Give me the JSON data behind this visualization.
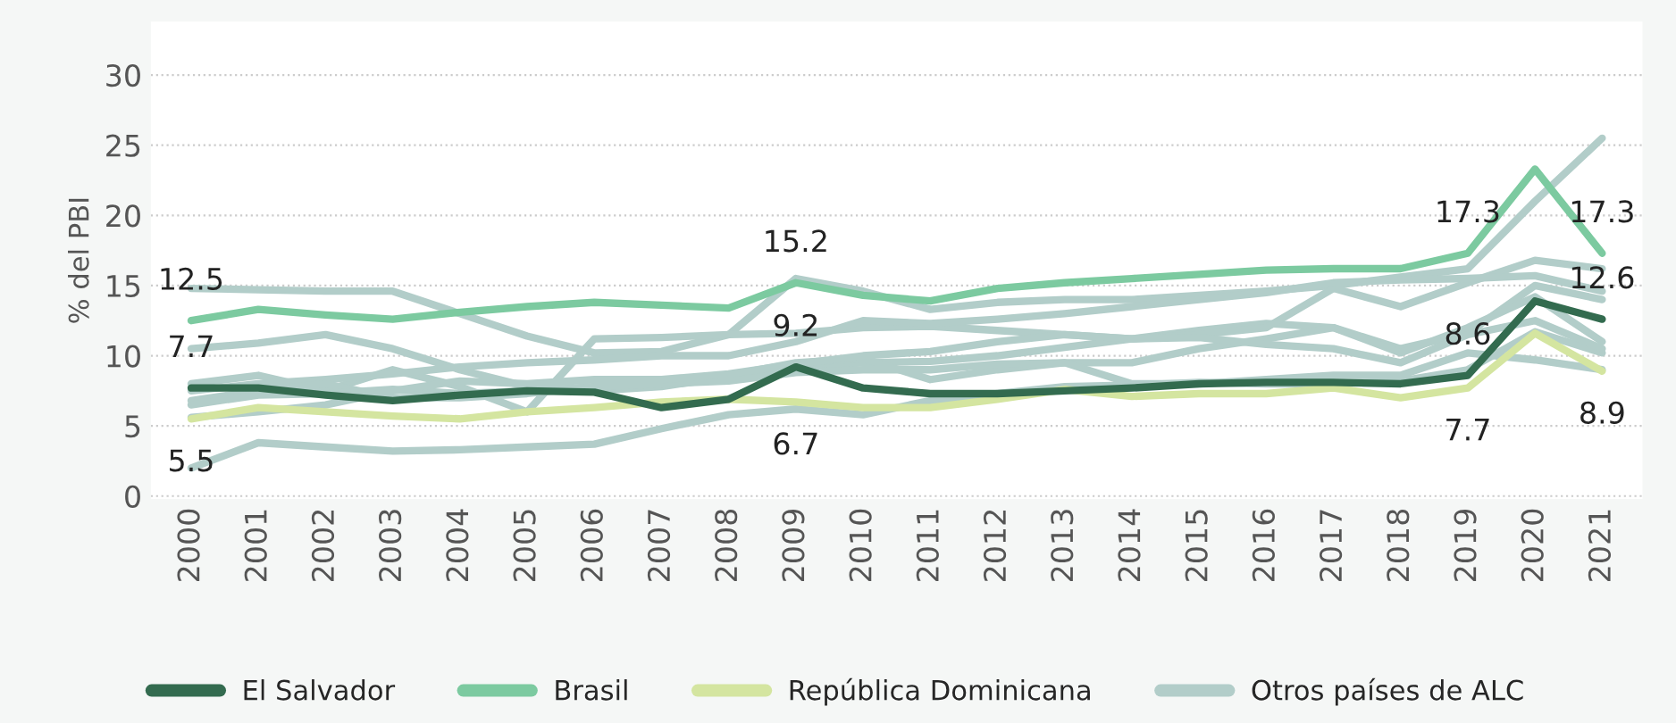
{
  "chart_data": {
    "type": "line",
    "ylabel": "% del PBI",
    "categories": [
      "2000",
      "2001",
      "2002",
      "2003",
      "2004",
      "2005",
      "2006",
      "2007",
      "2008",
      "2009",
      "2010",
      "2011",
      "2012",
      "2013",
      "2014",
      "2015",
      "2016",
      "2017",
      "2018",
      "2019",
      "2020",
      "2021"
    ],
    "ylim": [
      -0.2,
      33.8
    ],
    "yticks": [
      0,
      5,
      10,
      15,
      20,
      25,
      30
    ],
    "grid": "y",
    "legend": "bottom",
    "series": [
      {
        "color": "#b2cdc9",
        "values": [
          14.8,
          14.7,
          14.6,
          14.6,
          13.0,
          11.4,
          10.2,
          10.3,
          11.5,
          15.5,
          14.6,
          13.3,
          13.8,
          14.0,
          14.0,
          14.3,
          14.6,
          15.0,
          15.6,
          16.2,
          21.0,
          25.5
        ]
      },
      {
        "color": "#b2cdc9",
        "values": [
          10.5,
          10.9,
          11.5,
          10.5,
          9.0,
          7.8,
          7.5,
          7.8,
          8.5,
          9.2,
          9.5,
          9.6,
          10.0,
          10.6,
          11.2,
          11.8,
          12.3,
          12.0,
          10.5,
          11.6,
          15.0,
          14.0
        ]
      },
      {
        "color": "#b2cdc9",
        "values": [
          8.0,
          8.6,
          7.5,
          9.0,
          7.8,
          6.0,
          11.2,
          11.3,
          11.5,
          11.6,
          12.0,
          12.1,
          11.8,
          11.5,
          11.2,
          11.5,
          12.0,
          14.8,
          13.5,
          15.2,
          16.8,
          16.2
        ]
      },
      {
        "color": "#b2cdc9",
        "values": [
          2.0,
          3.8,
          3.5,
          3.2,
          3.3,
          3.5,
          3.7,
          4.8,
          5.8,
          6.2,
          5.8,
          6.8,
          7.3,
          7.8,
          7.9,
          8.1,
          8.0,
          8.0,
          8.2,
          9.0,
          11.7,
          10.2
        ]
      },
      {
        "color": "#b2cdc9",
        "values": [
          7.5,
          8.0,
          8.3,
          8.7,
          9.2,
          9.5,
          9.7,
          10.0,
          10.0,
          11.0,
          12.5,
          12.3,
          12.6,
          13.0,
          13.5,
          14.0,
          14.5,
          15.2,
          15.4,
          15.5,
          15.7,
          14.6
        ]
      },
      {
        "color": "#b2cdc9",
        "values": [
          6.8,
          7.5,
          8.0,
          7.0,
          7.0,
          7.3,
          7.8,
          8.0,
          8.6,
          9.5,
          9.8,
          8.3,
          9.0,
          9.5,
          9.5,
          10.5,
          11.2,
          12.0,
          10.2,
          12.0,
          14.2,
          11.0
        ]
      },
      {
        "color": "#b2cdc9",
        "values": [
          6.5,
          7.2,
          7.3,
          7.6,
          7.3,
          7.5,
          7.8,
          8.0,
          8.2,
          8.8,
          9.0,
          9.0,
          9.4,
          9.5,
          8.0,
          8.0,
          8.3,
          8.6,
          8.6,
          10.2,
          9.7,
          9.0
        ]
      },
      {
        "name": "Otros países de ALC",
        "color": "#b2cdc9",
        "values": [
          5.6,
          6.0,
          6.5,
          7.5,
          8.2,
          8.0,
          8.3,
          8.3,
          8.7,
          9.4,
          10.0,
          10.3,
          11.0,
          11.5,
          11.2,
          11.3,
          10.8,
          10.5,
          9.5,
          11.5,
          12.5,
          10.5
        ]
      },
      {
        "name": "República Dominicana",
        "color": "#d4e5a0",
        "values": [
          5.5,
          6.3,
          6.0,
          5.7,
          5.5,
          6.0,
          6.3,
          6.7,
          6.9,
          6.7,
          6.3,
          6.3,
          6.9,
          7.6,
          7.1,
          7.3,
          7.3,
          7.7,
          7.0,
          7.7,
          11.6,
          8.9
        ],
        "value_labels": [
          "5.5",
          null,
          null,
          null,
          null,
          null,
          null,
          null,
          null,
          "6.7",
          null,
          null,
          null,
          null,
          null,
          null,
          null,
          null,
          null,
          "7.7",
          null,
          "8.9"
        ]
      },
      {
        "name": "Brasil",
        "color": "#7ccaa0",
        "values": [
          12.5,
          13.3,
          12.9,
          12.6,
          13.1,
          13.5,
          13.8,
          13.6,
          13.4,
          15.2,
          14.3,
          13.9,
          14.8,
          15.2,
          15.5,
          15.8,
          16.1,
          16.2,
          16.2,
          17.3,
          23.3,
          17.3
        ],
        "value_labels": [
          "12.5",
          null,
          null,
          null,
          null,
          null,
          null,
          null,
          null,
          "15.2",
          null,
          null,
          null,
          null,
          null,
          null,
          null,
          null,
          null,
          "17.3",
          null,
          "17.3"
        ]
      },
      {
        "name": "El Salvador",
        "color": "#336b4f",
        "values": [
          7.7,
          7.7,
          7.2,
          6.8,
          7.2,
          7.5,
          7.4,
          6.3,
          6.9,
          9.2,
          7.7,
          7.3,
          7.3,
          7.5,
          7.7,
          8.0,
          8.1,
          8.1,
          8.0,
          8.6,
          13.9,
          12.6
        ],
        "value_labels": [
          "7.7",
          null,
          null,
          null,
          null,
          null,
          null,
          null,
          null,
          "9.2",
          null,
          null,
          null,
          null,
          null,
          null,
          null,
          null,
          null,
          "8.6",
          null,
          "12.6"
        ]
      }
    ]
  }
}
